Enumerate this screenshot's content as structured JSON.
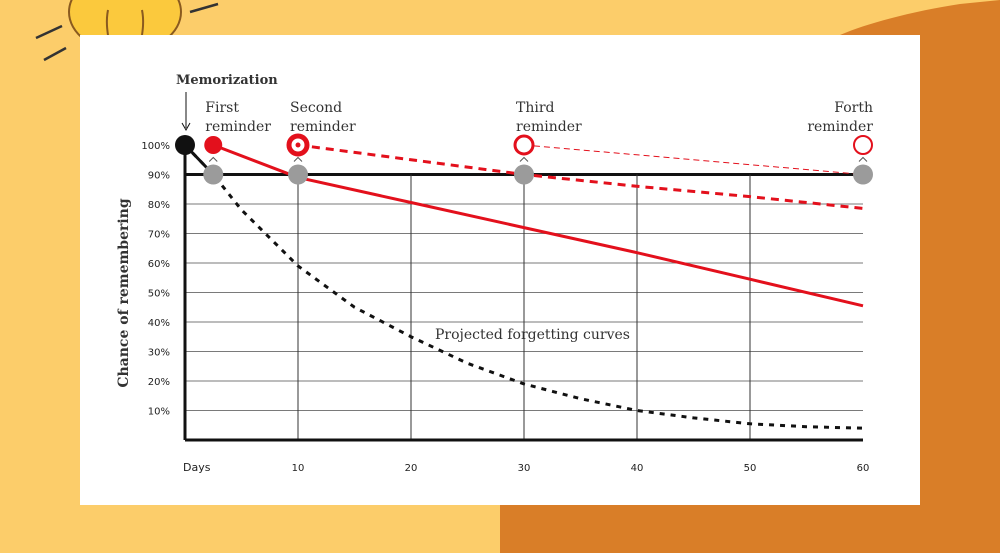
{
  "colors": {
    "background": "#fccd6a",
    "blob": "#d97e28",
    "card": "#ffffff",
    "red": "#e3101c",
    "gray": "#9b9b9b",
    "black": "#111111",
    "bulb": "#fbc93d",
    "bulb_base": "#b07a4d"
  },
  "chart_data": {
    "type": "line",
    "title": "",
    "xlabel": "Days",
    "ylabel": "Chance of remembering",
    "xlim": [
      0,
      60
    ],
    "ylim": [
      0,
      100
    ],
    "x_ticks": [
      10,
      20,
      30,
      40,
      50,
      60
    ],
    "y_ticks": [
      "100%",
      "90%",
      "80%",
      "70%",
      "60%",
      "50%",
      "40%",
      "30%",
      "20%",
      "10%"
    ],
    "y_tick_values": [
      100,
      90,
      80,
      70,
      60,
      50,
      40,
      30,
      20,
      10
    ],
    "gridlines": [
      90,
      80,
      70,
      60,
      50,
      40,
      30,
      20,
      10
    ],
    "memorization_label": "Memorization",
    "annotation": "Projected forgetting curves",
    "reminders": [
      {
        "label_line1": "First",
        "label_line2": "reminder",
        "day": 2.5
      },
      {
        "label_line1": "Second",
        "label_line2": "reminder",
        "day": 10
      },
      {
        "label_line1": "Third",
        "label_line2": "reminder",
        "day": 30
      },
      {
        "label_line1": "Forth",
        "label_line2": "reminder",
        "day": 60
      }
    ],
    "series": [
      {
        "name": "Forgetting curve (no review)",
        "style": "dotted-black",
        "x": [
          0,
          2.5,
          5,
          10,
          15,
          20,
          25,
          30,
          35,
          40,
          45,
          50,
          55,
          60
        ],
        "y": [
          100,
          90,
          78,
          59,
          45,
          35,
          26,
          19,
          14,
          10,
          7.5,
          5.5,
          4.5,
          4
        ]
      },
      {
        "name": "After first reminder",
        "style": "solid-red",
        "x": [
          2.5,
          10,
          20,
          30,
          40,
          50,
          60
        ],
        "y": [
          100,
          89,
          80.5,
          72,
          63.5,
          54.5,
          45.5
        ]
      },
      {
        "name": "After second reminder",
        "style": "dashed-red",
        "x": [
          10,
          20,
          30,
          40,
          50,
          60
        ],
        "y": [
          100,
          95,
          90,
          86,
          82.5,
          78.5
        ]
      },
      {
        "name": "After third reminder",
        "style": "thin-dashed-red",
        "x": [
          30,
          60
        ],
        "y": [
          100,
          90
        ]
      }
    ],
    "threshold": {
      "value": 90,
      "label": ""
    },
    "marker_points": {
      "memorization": {
        "x": 0,
        "y": 100
      },
      "gray_checkpoints": [
        {
          "x": 2.5,
          "y": 90
        },
        {
          "x": 10,
          "y": 90
        },
        {
          "x": 30,
          "y": 90
        },
        {
          "x": 60,
          "y": 90
        }
      ]
    }
  }
}
